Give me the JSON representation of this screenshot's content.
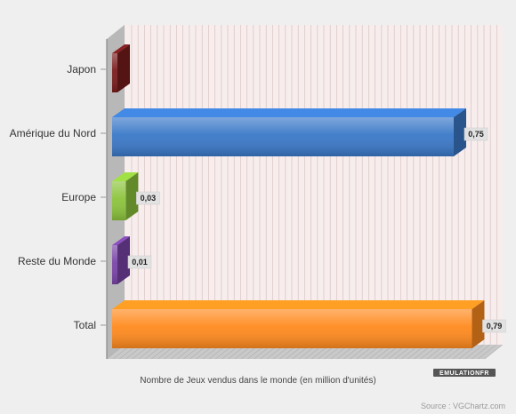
{
  "chart_data": {
    "type": "bar",
    "orientation": "horizontal",
    "categories": [
      "Japon",
      "Amérique du Nord",
      "Europe",
      "Reste du Monde",
      "Total"
    ],
    "values": [
      0,
      0.75,
      0.03,
      0.01,
      0.79
    ],
    "value_labels": [
      "",
      "0,75",
      "0,03",
      "0,01",
      "0,79"
    ],
    "colors": [
      "#7a1c1c",
      "#3a78c8",
      "#8cc43c",
      "#7a44a8",
      "#ff8a1e"
    ],
    "xlabel": "Nombre de Jeux vendus dans le monde (en million d'unités)",
    "xlim": [
      0,
      0.8
    ],
    "grid": true,
    "source": "Source : VGChartz.com",
    "watermark": "EMULATIONFR"
  }
}
